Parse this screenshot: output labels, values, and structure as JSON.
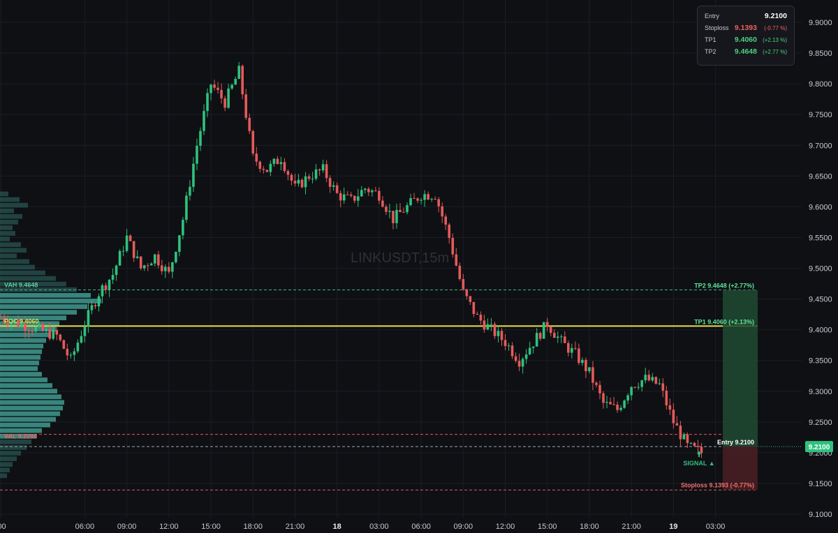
{
  "chart_data": {
    "type": "candlestick",
    "watermark": "LINKUSDT,15m",
    "ylim": [
      9.1,
      9.9
    ],
    "y_ticks": [
      "9.9000",
      "9.8500",
      "9.8000",
      "9.7500",
      "9.7000",
      "9.6500",
      "9.6000",
      "9.5500",
      "9.5000",
      "9.4500",
      "9.4000",
      "9.3500",
      "9.3000",
      "9.2500",
      "9.2000",
      "9.1500",
      "9.1000"
    ],
    "x_ticks": [
      {
        "label": ":00",
        "t": 0.0
      },
      {
        "label": "06:00",
        "t": 6
      },
      {
        "label": "09:00",
        "t": 9
      },
      {
        "label": "12:00",
        "t": 12
      },
      {
        "label": "15:00",
        "t": 15
      },
      {
        "label": "18:00",
        "t": 18
      },
      {
        "label": "21:00",
        "t": 21
      },
      {
        "label": "18",
        "t": 24,
        "bold": true
      },
      {
        "label": "03:00",
        "t": 27
      },
      {
        "label": "06:00",
        "t": 30
      },
      {
        "label": "09:00",
        "t": 33
      },
      {
        "label": "12:00",
        "t": 36
      },
      {
        "label": "15:00",
        "t": 39
      },
      {
        "label": "18:00",
        "t": 42
      },
      {
        "label": "21:00",
        "t": 45
      },
      {
        "label": "19",
        "t": 48,
        "bold": true
      },
      {
        "label": "03:00",
        "t": 51
      }
    ],
    "price_path_hours": [
      0,
      4,
      5,
      6,
      7,
      8,
      9,
      10,
      11,
      12,
      13,
      14,
      15,
      16,
      17,
      18,
      19,
      20,
      21,
      22,
      23,
      24,
      25,
      26,
      27,
      28,
      29,
      30,
      31,
      32,
      33,
      34,
      35,
      36,
      37,
      38,
      39,
      40,
      41,
      42,
      43,
      44,
      45,
      46,
      47,
      48,
      49,
      50,
      51,
      52,
      53.3
    ],
    "price_path": [
      9.42,
      9.39,
      9.35,
      9.41,
      9.46,
      9.49,
      9.55,
      9.5,
      9.52,
      9.49,
      9.58,
      9.7,
      9.8,
      9.77,
      9.82,
      9.68,
      9.66,
      9.68,
      9.63,
      9.65,
      9.66,
      9.62,
      9.61,
      9.63,
      9.62,
      9.58,
      9.6,
      9.62,
      9.62,
      9.55,
      9.46,
      9.42,
      9.4,
      9.38,
      9.35,
      9.38,
      9.41,
      9.38,
      9.36,
      9.33,
      9.28,
      9.27,
      9.31,
      9.32,
      9.31,
      9.25,
      9.21,
      9.2,
      9.22,
      9.26,
      9.21
    ],
    "volume_profile": [
      12,
      28,
      40,
      20,
      32,
      26,
      18,
      22,
      14,
      30,
      38,
      24,
      42,
      50,
      65,
      80,
      95,
      110,
      130,
      145,
      125,
      110,
      95,
      85,
      80,
      70,
      66,
      62,
      60,
      58,
      56,
      54,
      60,
      68,
      75,
      82,
      88,
      92,
      90,
      86,
      80,
      72,
      60,
      52,
      45,
      38,
      30,
      24,
      18,
      14,
      10
    ],
    "levels": {
      "vah": {
        "name": "VAH",
        "value": "9.4648",
        "y": 9.4648
      },
      "poc": {
        "name": "POC",
        "value": "9.4060",
        "y": 9.406
      },
      "val": {
        "name": "VAL",
        "value": "9.2298",
        "y": 9.2298
      },
      "entry": {
        "name": "Entry",
        "value": "9.2100",
        "y": 9.21
      },
      "stoploss": {
        "name": "Stoploss",
        "value": "9.1393",
        "pct": "(-0.77%)",
        "y": 9.1393
      },
      "tp1": {
        "name": "TP1",
        "value": "9.4060",
        "pct": "(+2.13%)",
        "y": 9.406
      },
      "tp2": {
        "name": "TP2",
        "value": "9.4648",
        "pct": "(+2.77%)",
        "y": 9.4648
      }
    },
    "signal_label": "SIGNAL ▲",
    "last_price": "9.2100"
  },
  "info_panel": {
    "entry_label": "Entry",
    "entry_value": "9.2100",
    "stoploss_label": "Stoploss",
    "stoploss_value": "9.1393",
    "stoploss_pct": "(-0.77 %)",
    "tp1_label": "TP1",
    "tp1_value": "9.4060",
    "tp1_pct": "(+2.13 %)",
    "tp2_label": "TP2",
    "tp2_value": "9.4648",
    "tp2_pct": "(+2.77 %)"
  },
  "colors": {
    "up": "#2ec27e",
    "down": "#e55a5a",
    "poc": "#e6e04a",
    "bg": "#0f1014",
    "vp": "#3a8f86"
  }
}
